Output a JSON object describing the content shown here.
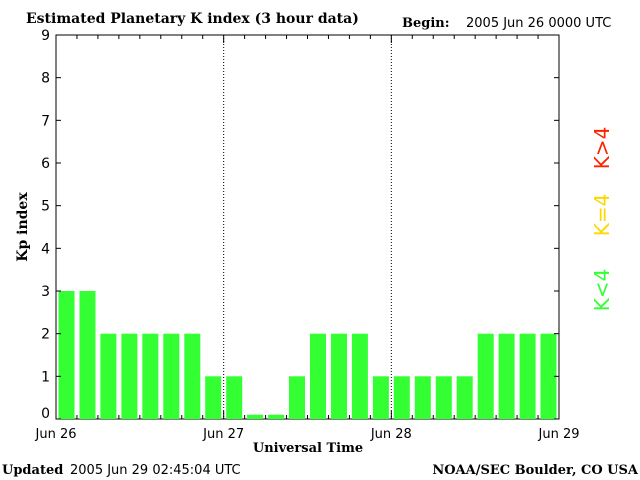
{
  "chart_data": {
    "type": "bar",
    "title": "Estimated Planetary K index (3 hour data)",
    "begin_label": "Begin:",
    "begin_value": "2005 Jun 26 0000 UTC",
    "xlabel": "Universal Time",
    "ylabel": "Kp index",
    "ylim": [
      0,
      9
    ],
    "yticks": [
      "0",
      "1",
      "2",
      "3",
      "4",
      "5",
      "6",
      "7",
      "8",
      "9"
    ],
    "xticks": [
      "Jun 26",
      "Jun 27",
      "Jun 28",
      "Jun 29"
    ],
    "values": [
      3,
      3,
      2,
      2,
      2,
      2,
      2,
      1,
      1,
      0.1,
      0.1,
      1,
      2,
      2,
      2,
      1,
      1,
      1,
      1,
      1,
      2,
      2,
      2,
      2
    ],
    "legend": [
      {
        "label": "K<4",
        "color": "#33ff33"
      },
      {
        "label": "K=4",
        "color": "#ffd700"
      },
      {
        "label": "K>4",
        "color": "#ff2200"
      }
    ],
    "bar_color": "#33ff33"
  },
  "footer": {
    "updated_label": "Updated",
    "updated_value": "2005 Jun 29 02:45:04 UTC",
    "source": "NOAA/SEC Boulder, CO USA"
  }
}
